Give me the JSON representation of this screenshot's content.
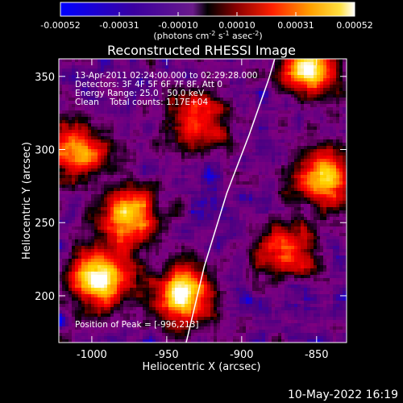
{
  "colorbar": {
    "ticks": [
      "-0.00052",
      "-0.00031",
      "-0.00010",
      "0.00010",
      "0.00031",
      "0.00052"
    ],
    "units": "(photons cm",
    "units_exp1": "-2",
    "units_mid": " s",
    "units_exp2": "-1",
    "units_mid2": " asec",
    "units_exp3": "-2",
    "units_end": ")",
    "range": [
      -0.00052,
      0.00052
    ]
  },
  "chart_data": {
    "type": "heatmap",
    "title": "Reconstructed RHESSI Image",
    "xlabel": "Heliocentric X (arcsec)",
    "ylabel": "Heliocentric Y (arcsec)",
    "xlim": [
      -1022,
      -830
    ],
    "ylim": [
      168,
      362
    ],
    "x_ticks": [
      "-1000",
      "-950",
      "-900",
      "-850"
    ],
    "x_tick_values": [
      -1000,
      -950,
      -900,
      -850
    ],
    "y_ticks": [
      "200",
      "250",
      "300",
      "350"
    ],
    "y_tick_values": [
      200,
      250,
      300,
      350
    ],
    "colormap": [
      "#0000ff",
      "#4b0082",
      "#800080",
      "#000000",
      "#b40000",
      "#ff0000",
      "#ff8c00",
      "#ffd700",
      "#ffffff"
    ],
    "peak_position": [
      -996,
      213
    ],
    "limb_curve": [
      [
        -937,
        168
      ],
      [
        -925,
        220
      ],
      [
        -910,
        270
      ],
      [
        -895,
        310
      ],
      [
        -882,
        348
      ],
      [
        -878,
        362
      ]
    ],
    "annotations": [
      "13-Apr-2011 02:24:00.000 to 02:29:28.000",
      "Detectors: 3F 4F 5F 6F 7F 8F, Att 0",
      "Energy Range: 25.0 - 50.0 keV",
      "Clean    Total counts: 1.17E+04"
    ],
    "peak_label": "Position of Peak = [-996,213]",
    "hotspots": [
      {
        "x": -995,
        "y": 212,
        "level": 1.0
      },
      {
        "x": -940,
        "y": 200,
        "level": 0.95
      },
      {
        "x": -855,
        "y": 355,
        "level": 0.9
      },
      {
        "x": -845,
        "y": 280,
        "level": 0.85
      },
      {
        "x": -975,
        "y": 255,
        "level": 0.8
      },
      {
        "x": -1010,
        "y": 300,
        "level": 0.7
      },
      {
        "x": -930,
        "y": 320,
        "level": 0.6
      },
      {
        "x": -870,
        "y": 230,
        "level": 0.65
      }
    ]
  },
  "footer": {
    "date": "10-May-2022 16:19"
  }
}
